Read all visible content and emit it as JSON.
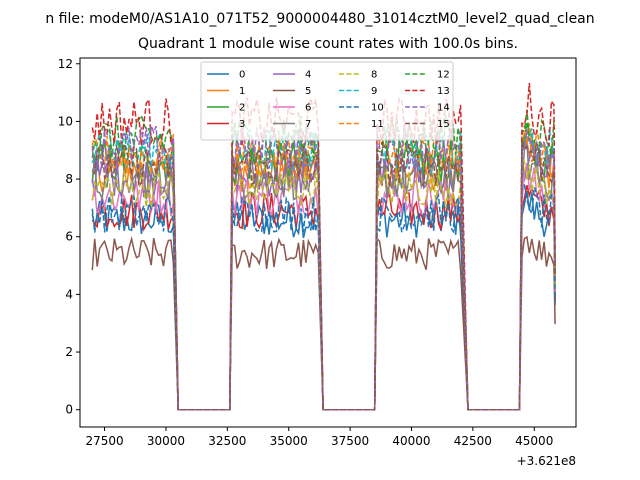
{
  "figure_title": "n file: modeM0/AS1A10_071T52_9000004480_31014cztM0_level2_quad_clean",
  "chart_data": {
    "type": "line",
    "title": "Quadrant 1 module wise count rates with 100.0s bins.",
    "xlabel": "",
    "ylabel": "",
    "x_offset_label": "+3.621e8",
    "xlim": [
      26500,
      46700
    ],
    "ylim": [
      -0.6,
      12.2
    ],
    "x_ticks": [
      27500,
      30000,
      32500,
      35000,
      37500,
      40000,
      42500,
      45000
    ],
    "x_tick_labels": [
      "27500",
      "30000",
      "32500",
      "35000",
      "37500",
      "40000",
      "42500",
      "45000"
    ],
    "y_ticks": [
      0,
      2,
      4,
      6,
      8,
      10,
      12
    ],
    "y_tick_labels": [
      "0",
      "2",
      "4",
      "6",
      "8",
      "10",
      "12"
    ],
    "grid": false,
    "legend": {
      "placement": "top-center",
      "columns": 4
    },
    "segments": [
      {
        "start": 27000,
        "end": 30300,
        "drop_end": 30500
      },
      {
        "start": 32700,
        "end": 36200,
        "rise_start": 32600,
        "drop_end": 36400
      },
      {
        "start": 38600,
        "end": 42000,
        "rise_start": 38500,
        "drop_end": 42300
      },
      {
        "start": 44500,
        "end": 45800,
        "rise_start": 44400
      }
    ],
    "gaps_value": 0,
    "series": [
      {
        "name": "0",
        "color": "#1f77b4",
        "dash": "solid",
        "mean": 6.6
      },
      {
        "name": "1",
        "color": "#ff7f0e",
        "dash": "solid",
        "mean": 8.3
      },
      {
        "name": "2",
        "color": "#2ca02c",
        "dash": "solid",
        "mean": 8.6
      },
      {
        "name": "3",
        "color": "#d62728",
        "dash": "solid",
        "mean": 6.9
      },
      {
        "name": "4",
        "color": "#9467bd",
        "dash": "solid",
        "mean": 8.1
      },
      {
        "name": "5",
        "color": "#8c564b",
        "dash": "solid",
        "mean": 5.4
      },
      {
        "name": "6",
        "color": "#e377c2",
        "dash": "solid",
        "mean": 7.4
      },
      {
        "name": "7",
        "color": "#7f7f7f",
        "dash": "solid",
        "mean": 8.0
      },
      {
        "name": "8",
        "color": "#bcbd22",
        "dash": "dashed",
        "mean": 7.7
      },
      {
        "name": "9",
        "color": "#17becf",
        "dash": "dashed",
        "mean": 9.0
      },
      {
        "name": "10",
        "color": "#1f77b4",
        "dash": "dashed",
        "mean": 6.8
      },
      {
        "name": "11",
        "color": "#ff7f0e",
        "dash": "dashed",
        "mean": 8.8
      },
      {
        "name": "12",
        "color": "#2ca02c",
        "dash": "dashed",
        "mean": 9.4
      },
      {
        "name": "13",
        "color": "#d62728",
        "dash": "dashed",
        "mean": 10.0
      },
      {
        "name": "14",
        "color": "#9467bd",
        "dash": "dashed",
        "mean": 9.1
      },
      {
        "name": "15",
        "color": "#8c564b",
        "dash": "dashed",
        "mean": 8.5
      }
    ]
  }
}
